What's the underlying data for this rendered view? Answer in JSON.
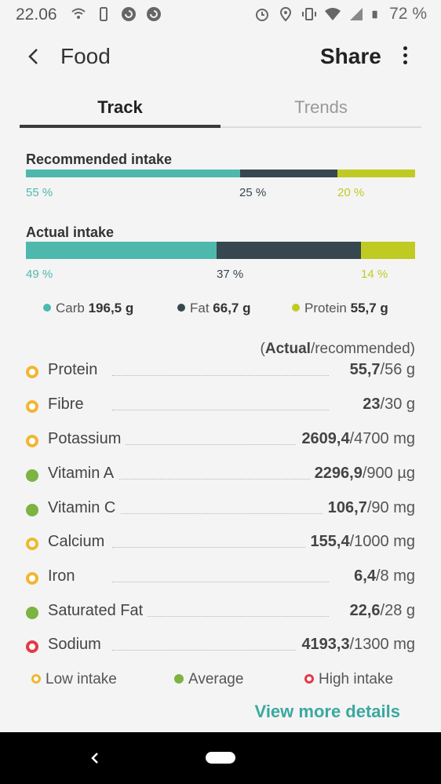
{
  "status": {
    "time": "22.06",
    "battery": "72 %",
    "icons_left": [
      "wifi-calling-icon",
      "phone-icon",
      "sync-icon",
      "sync-icon"
    ],
    "icons_right": [
      "alarm-icon",
      "location-icon",
      "vibrate-icon",
      "wifi-icon",
      "signal-icon",
      "battery-icon"
    ]
  },
  "header": {
    "title": "Food",
    "share_label": "Share"
  },
  "tabs": [
    {
      "label": "Track",
      "active": true
    },
    {
      "label": "Trends",
      "active": false
    }
  ],
  "colors": {
    "carb": "#4fb8ad",
    "fat": "#37474f",
    "protein": "#bfcb22",
    "low": "#f2b632",
    "average": "#7cb342",
    "high": "#e53945",
    "accent": "#3aa8a0"
  },
  "recommended": {
    "title": "Recommended intake",
    "carb_pct": "55 %",
    "fat_pct": "25 %",
    "protein_pct": "20 %",
    "carb_value": 55,
    "fat_value": 25,
    "protein_value": 20
  },
  "actual": {
    "title": "Actual intake",
    "carb_pct": "49 %",
    "fat_pct": "37 %",
    "protein_pct": "14 %",
    "carb_value": 49,
    "fat_value": 37,
    "protein_value": 14
  },
  "legend": {
    "carb_label": "Carb",
    "carb_amount": "196,5 g",
    "fat_label": "Fat",
    "fat_amount": "66,7 g",
    "protein_label": "Protein",
    "protein_amount": "55,7 g"
  },
  "list_header": {
    "open": "(",
    "actual": "Actual",
    "rest": "/recommended)"
  },
  "nutrients": [
    {
      "name": "Protein",
      "status": "low",
      "actual": "55,7",
      "recommended": "/56 g"
    },
    {
      "name": "Fibre",
      "status": "low",
      "actual": "23",
      "recommended": "/30 g"
    },
    {
      "name": "Potassium",
      "status": "low",
      "actual": "2609,4",
      "recommended": "/4700 mg"
    },
    {
      "name": "Vitamin A",
      "status": "average",
      "actual": "2296,9",
      "recommended": "/900 µg"
    },
    {
      "name": "Vitamin C",
      "status": "average",
      "actual": "106,7",
      "recommended": "/90 mg"
    },
    {
      "name": "Calcium",
      "status": "low",
      "actual": "155,4",
      "recommended": "/1000 mg"
    },
    {
      "name": "Iron",
      "status": "low",
      "actual": "6,4",
      "recommended": "/8 mg"
    },
    {
      "name": "Saturated Fat",
      "status": "average",
      "actual": "22,6",
      "recommended": "/28 g"
    },
    {
      "name": "Sodium",
      "status": "high",
      "actual": "4193,3",
      "recommended": "/1300 mg"
    }
  ],
  "intake_legend": {
    "low": "Low intake",
    "average": "Average",
    "high": "High intake"
  },
  "view_more": "View more details"
}
